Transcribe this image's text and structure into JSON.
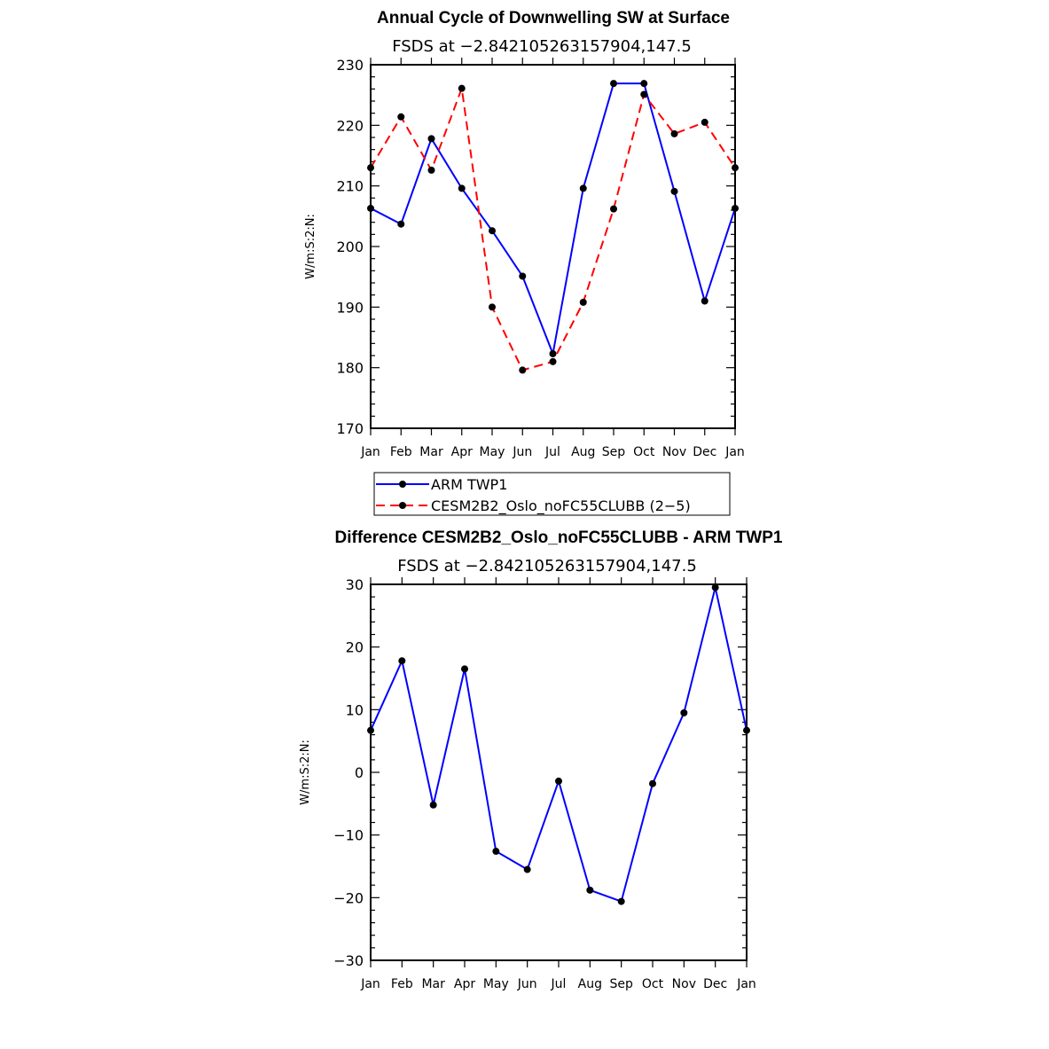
{
  "chart_data": [
    {
      "type": "line",
      "title": "Annual Cycle of Downwelling SW at Surface",
      "subtitle": "FSDS at −2.842105263157904,147.5",
      "xlabel": "",
      "ylabel": "W/m:S:2:N:",
      "categories": [
        "Jan",
        "Feb",
        "Mar",
        "Apr",
        "May",
        "Jun",
        "Jul",
        "Aug",
        "Sep",
        "Oct",
        "Nov",
        "Dec",
        "Jan"
      ],
      "ylim": [
        170,
        230
      ],
      "yticks": [
        170,
        180,
        190,
        200,
        210,
        220,
        230
      ],
      "ytick_labels": [
        "170",
        "180",
        "190",
        "200",
        "210",
        "220",
        "230"
      ],
      "series": [
        {
          "name": "ARM TWP1",
          "color": "#0000ff",
          "dash": "solid",
          "values": [
            206.3,
            203.7,
            217.8,
            209.6,
            202.6,
            195.1,
            182.3,
            209.6,
            226.9,
            226.9,
            209.1,
            191.0,
            206.3
          ]
        },
        {
          "name": "CESM2B2_Oslo_noFC55CLUBB (2−5)",
          "color": "#ff0000",
          "dash": "dashed",
          "values": [
            213.0,
            221.4,
            212.6,
            226.1,
            190.0,
            179.6,
            181.0,
            190.8,
            206.2,
            225.1,
            218.6,
            220.5,
            213.0
          ]
        }
      ],
      "legend": [
        {
          "label": "ARM TWP1",
          "color": "#0000ff",
          "dash": "solid"
        },
        {
          "label": "CESM2B2_Oslo_noFC55CLUBB (2−5)",
          "color": "#ff0000",
          "dash": "dashed"
        }
      ]
    },
    {
      "type": "line",
      "title": "Difference CESM2B2_Oslo_noFC55CLUBB - ARM TWP1",
      "subtitle": "FSDS at −2.842105263157904,147.5",
      "xlabel": "",
      "ylabel": "W/m:S:2:N:",
      "categories": [
        "Jan",
        "Feb",
        "Mar",
        "Apr",
        "May",
        "Jun",
        "Jul",
        "Aug",
        "Sep",
        "Oct",
        "Nov",
        "Dec",
        "Jan"
      ],
      "ylim": [
        -30,
        30
      ],
      "yticks": [
        -30,
        -20,
        -10,
        0,
        10,
        20,
        30
      ],
      "ytick_labels": [
        "−30",
        "−20",
        "−10",
        "0",
        "10",
        "20",
        "30"
      ],
      "series": [
        {
          "name": "Difference",
          "color": "#0000ff",
          "dash": "solid",
          "values": [
            6.7,
            17.8,
            -5.2,
            16.5,
            -12.6,
            -15.5,
            -1.4,
            -18.8,
            -20.6,
            -1.8,
            9.5,
            29.5,
            6.7
          ]
        }
      ]
    }
  ]
}
